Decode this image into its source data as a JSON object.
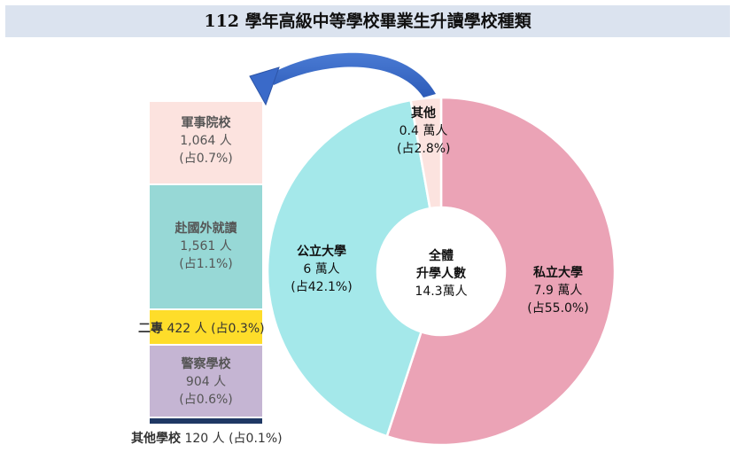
{
  "title": "112 學年高級中等學校畢業生升讀學校種類",
  "chart_data": {
    "type": "pie",
    "slices": [
      {
        "name": "私立大學",
        "value": 7.9,
        "unit": "萬人",
        "pct_text": "(占55.0%)",
        "share": 55.0,
        "color": "#eba3b6"
      },
      {
        "name": "公立大學",
        "value": 6.0,
        "unit": "萬人",
        "pct_text": "(占42.1%)",
        "share": 42.1,
        "color": "#a4e8ea"
      },
      {
        "name": "其他",
        "value": 0.4,
        "unit": "萬人",
        "pct_text": "(占2.8%)",
        "share": 2.8,
        "color": "#fce3df"
      }
    ],
    "center": {
      "line1": "全體",
      "line2": "升學人數",
      "value": "14.3萬人"
    },
    "breakdown": [
      {
        "name": "軍事院校",
        "count": "1,064",
        "unit": "人",
        "pct_text": "(占0.7%)",
        "share": 0.7,
        "color": "#fce3df"
      },
      {
        "name": "赴國外就讀",
        "count": "1,561",
        "unit": "人",
        "pct_text": "(占1.1%)",
        "share": 1.1,
        "color": "#97d8d6"
      },
      {
        "name": "二專",
        "count": "422",
        "unit": "人",
        "pct_text": "(占0.3%)",
        "share": 0.3,
        "color": "#fedd2a"
      },
      {
        "name": "警察學校",
        "count": "904",
        "unit": "人",
        "pct_text": "(占0.6%)",
        "share": 0.6,
        "color": "#c5b5d3"
      },
      {
        "name": "其他學校",
        "count": "120",
        "unit": "人",
        "pct_text": "(占0.1%)",
        "share": 0.1,
        "color": "#1f3864"
      }
    ]
  }
}
